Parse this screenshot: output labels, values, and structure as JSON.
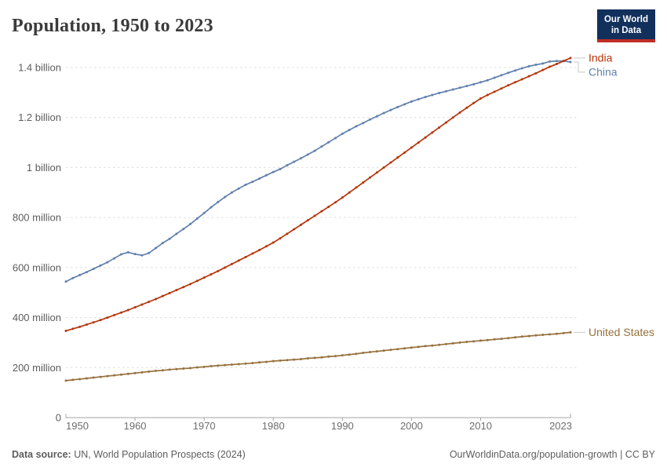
{
  "header": {
    "title": "Population, 1950 to 2023"
  },
  "logo": {
    "line1": "Our World",
    "line2": "in Data",
    "bg_color": "#12305c",
    "bar_color": "#bf2e26"
  },
  "footer": {
    "source_label": "Data source:",
    "source_text": " UN, World Population Prospects (2024)",
    "link_text": "OurWorldinData.org/population-growth | CC BY"
  },
  "chart_data": {
    "type": "line",
    "title": "Population, 1950 to 2023",
    "xlabel": "",
    "ylabel": "",
    "unit": "people",
    "values_unit": "millions",
    "grid": "horizontal-dashed",
    "legend_position": "end-of-line-labels",
    "x_range": [
      1950,
      2023
    ],
    "x_ticks": [
      1950,
      1960,
      1970,
      1980,
      1990,
      2000,
      2010,
      2023
    ],
    "y_ticks": [
      {
        "value_millions": 0,
        "label": "0"
      },
      {
        "value_millions": 200,
        "label": "200 million"
      },
      {
        "value_millions": 400,
        "label": "400 million"
      },
      {
        "value_millions": 600,
        "label": "600 million"
      },
      {
        "value_millions": 800,
        "label": "800 million"
      },
      {
        "value_millions": 1000,
        "label": "1 billion"
      },
      {
        "value_millions": 1200,
        "label": "1.2 billion"
      },
      {
        "value_millions": 1400,
        "label": "1.4 billion"
      }
    ],
    "ylim_millions": [
      0,
      1400
    ],
    "series": [
      {
        "name": "India",
        "color": "#b5350b",
        "values": [
          347,
          355,
          363,
          372,
          381,
          390,
          400,
          410,
          420,
          430,
          441,
          452,
          463,
          474,
          486,
          498,
          510,
          522,
          534,
          547,
          560,
          573,
          586,
          600,
          614,
          628,
          642,
          656,
          670,
          685,
          700,
          717,
          735,
          753,
          771,
          789,
          807,
          825,
          843,
          861,
          880,
          900,
          920,
          940,
          960,
          980,
          1000,
          1020,
          1040,
          1060,
          1080,
          1100,
          1120,
          1140,
          1160,
          1180,
          1200,
          1220,
          1239,
          1258,
          1276,
          1290,
          1303,
          1316,
          1329,
          1341,
          1353,
          1365,
          1377,
          1390,
          1403,
          1414,
          1426,
          1438
        ]
      },
      {
        "name": "China",
        "color": "#6180ae",
        "values": [
          544,
          558,
          570,
          582,
          595,
          608,
          621,
          637,
          653,
          661,
          654,
          649,
          658,
          678,
          698,
          715,
          735,
          754,
          774,
          796,
          818,
          841,
          862,
          882,
          900,
          916,
          931,
          943,
          956,
          969,
          982,
          994,
          1009,
          1023,
          1037,
          1052,
          1067,
          1084,
          1101,
          1118,
          1135,
          1150,
          1165,
          1178,
          1192,
          1205,
          1218,
          1230,
          1242,
          1253,
          1264,
          1273,
          1282,
          1290,
          1298,
          1305,
          1312,
          1319,
          1326,
          1333,
          1341,
          1349,
          1359,
          1369,
          1379,
          1388,
          1397,
          1405,
          1411,
          1416,
          1424,
          1426,
          1426,
          1422
        ]
      },
      {
        "name": "United States",
        "color": "#96713c",
        "values": [
          148,
          151,
          154,
          157,
          160,
          163,
          166,
          169,
          172,
          175,
          178,
          181,
          184,
          187,
          189,
          192,
          194,
          196,
          198,
          201,
          203,
          206,
          208,
          210,
          212,
          214,
          216,
          218,
          221,
          223,
          226,
          228,
          230,
          232,
          234,
          237,
          239,
          241,
          244,
          246,
          249,
          252,
          255,
          259,
          262,
          265,
          268,
          271,
          274,
          277,
          280,
          283,
          286,
          288,
          291,
          294,
          297,
          300,
          303,
          305,
          308,
          310,
          313,
          315,
          318,
          321,
          324,
          326,
          329,
          331,
          333,
          335,
          338,
          341
        ]
      }
    ]
  }
}
